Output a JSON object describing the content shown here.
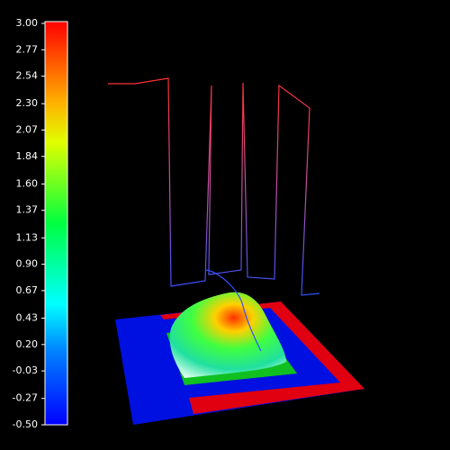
{
  "colorbar": {
    "lim": [
      -0.5,
      3
    ],
    "ticks": [
      {
        "value": 3,
        "label": "3.00"
      },
      {
        "value": 2.77,
        "label": "2.77"
      },
      {
        "value": 2.54,
        "label": "2.54"
      },
      {
        "value": 2.3,
        "label": "2.30"
      },
      {
        "value": 2.07,
        "label": "2.07"
      },
      {
        "value": 1.84,
        "label": "1.84"
      },
      {
        "value": 1.6,
        "label": "1.60"
      },
      {
        "value": 1.37,
        "label": "1.37"
      },
      {
        "value": 1.13,
        "label": "1.13"
      },
      {
        "value": 0.9,
        "label": "0.90"
      },
      {
        "value": 0.67,
        "label": "0.67"
      },
      {
        "value": 0.43,
        "label": "0.43"
      },
      {
        "value": 0.2,
        "label": "0.20"
      },
      {
        "value": -0.03,
        "label": "-0.03"
      },
      {
        "value": -0.27,
        "label": "-0.27"
      },
      {
        "value": -0.5,
        "label": "-0.50"
      }
    ]
  }
}
